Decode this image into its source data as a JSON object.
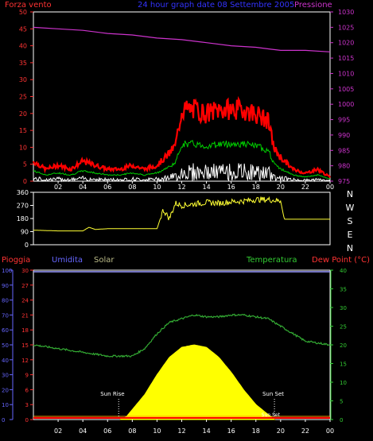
{
  "header": {
    "left_title": "Forza vento",
    "center_title": "24 hour graph date  08 Settembre 2005",
    "right_title": "Pressione"
  },
  "colors": {
    "background": "#000000",
    "frame": "#ffffff",
    "wind": "#ff0000",
    "wind_avg": "#00cc00",
    "wind_min": "#ffffff",
    "pressure": "#cc33cc",
    "direction": "#ffff33",
    "temperature": "#33aa33",
    "humidity": "#9999ff",
    "solar": "#ffff00",
    "rain": "#ff0000",
    "dewpoint": "#ff3333",
    "left_axis_text": "#ff3333",
    "right_axis_text_pressure": "#cc33cc",
    "right_axis_text_temp": "#33cc33",
    "humidity_axis": "#6666ff",
    "direction_axis_text": "#ffffff"
  },
  "x_axis": {
    "ticks": [
      "02",
      "04",
      "06",
      "08",
      "10",
      "12",
      "14",
      "16",
      "18",
      "20",
      "22",
      "00"
    ]
  },
  "chart_data": [
    {
      "type": "line",
      "name": "wind-pressure",
      "title": "24 hour graph date  08 Settembre 2005",
      "x_range": [
        0,
        24
      ],
      "y_left_ticks": [
        "0",
        "5",
        "10",
        "15",
        "20",
        "25",
        "30",
        "35",
        "40",
        "45",
        "50"
      ],
      "ylim_left": [
        0,
        50
      ],
      "y_right_ticks": [
        "975",
        "980",
        "985",
        "990",
        "995",
        "1000",
        "1005",
        "1010",
        "1015",
        "1020",
        "1025",
        "1030"
      ],
      "ylim_right": [
        975,
        1030
      ],
      "series": [
        {
          "name": "Forza vento",
          "x": [
            0,
            1,
            2,
            3,
            4,
            5,
            6,
            7,
            8,
            9,
            10,
            11,
            11.5,
            12,
            13,
            14,
            15,
            16,
            17,
            18,
            19,
            19.5,
            20,
            21,
            22,
            23,
            24
          ],
          "values": [
            5,
            3,
            4,
            3,
            5,
            4,
            3,
            3,
            4,
            3,
            4,
            7,
            9,
            18,
            18,
            17,
            18,
            18,
            18,
            17,
            15,
            8,
            6,
            3,
            2,
            3,
            1
          ]
        },
        {
          "name": "Pressione",
          "x": [
            0,
            2,
            4,
            6,
            8,
            10,
            12,
            14,
            16,
            18,
            19,
            20,
            22,
            24
          ],
          "values": [
            1025,
            1024.5,
            1024,
            1023,
            1022.5,
            1021.5,
            1021,
            1020,
            1019,
            1018.5,
            1018,
            1017.5,
            1017.5,
            1017
          ]
        }
      ]
    },
    {
      "type": "line",
      "name": "wind-direction",
      "x_range": [
        0,
        24
      ],
      "y_ticks": [
        "0",
        "90",
        "180",
        "270",
        "360"
      ],
      "ylim": [
        0,
        360
      ],
      "compass_labels": [
        "N",
        "W",
        "S",
        "E",
        "N"
      ],
      "series": [
        {
          "name": "direction",
          "x": [
            0,
            2,
            4,
            4.5,
            5,
            6,
            8,
            10,
            10.5,
            11,
            11.5,
            12,
            13,
            14,
            15,
            16,
            17,
            18,
            19,
            20,
            20.3,
            21,
            22,
            24
          ],
          "values": [
            100,
            95,
            95,
            120,
            105,
            110,
            110,
            110,
            240,
            180,
            285,
            270,
            280,
            290,
            285,
            295,
            300,
            310,
            310,
            300,
            175,
            175,
            175,
            175
          ]
        }
      ]
    },
    {
      "type": "area",
      "name": "temp-hum-solar",
      "x_range": [
        0,
        24
      ],
      "legend": [
        "Pioggia",
        "Umidita",
        "Solar",
        "Temperatura",
        "Dew Point (°C)"
      ],
      "y_left_ticks": [
        "0",
        "10",
        "20",
        "30",
        "40",
        "50",
        "60",
        "70",
        "80",
        "90",
        "100"
      ],
      "ylim_left": [
        0,
        100
      ],
      "y_solar_ticks": [
        "0",
        "3",
        "6",
        "9",
        "12",
        "15",
        "18",
        "21",
        "24",
        "27",
        "30"
      ],
      "ylim_solar": [
        0,
        30
      ],
      "y_right_ticks": [
        "0",
        "5",
        "10",
        "15",
        "20",
        "25",
        "30",
        "35",
        "40"
      ],
      "ylim_right": [
        0,
        40
      ],
      "annotations": [
        "Sun Rise",
        "Sun Set",
        "Sun Set"
      ],
      "series": [
        {
          "name": "Temperatura",
          "x": [
            0,
            2,
            4,
            6,
            7,
            8,
            9,
            10,
            11,
            12,
            13,
            14,
            15,
            16,
            17,
            18,
            19,
            20,
            21,
            22,
            23,
            24
          ],
          "values": [
            20,
            19,
            18,
            17,
            17,
            17,
            19,
            23,
            26,
            27,
            28,
            27.5,
            27.5,
            28,
            28,
            27.5,
            27,
            25,
            23,
            21,
            20.5,
            20
          ]
        },
        {
          "name": "Solar",
          "x": [
            7,
            7.5,
            8,
            9,
            10,
            11,
            12,
            13,
            14,
            15,
            16,
            17,
            18,
            19,
            19.5
          ],
          "values": [
            0,
            0.5,
            2,
            5,
            9,
            12.5,
            14.5,
            15,
            14.5,
            12.5,
            9.5,
            6,
            3,
            1,
            0
          ]
        },
        {
          "name": "Pioggia",
          "x": [
            0,
            24
          ],
          "values": [
            0,
            0
          ]
        }
      ]
    }
  ]
}
